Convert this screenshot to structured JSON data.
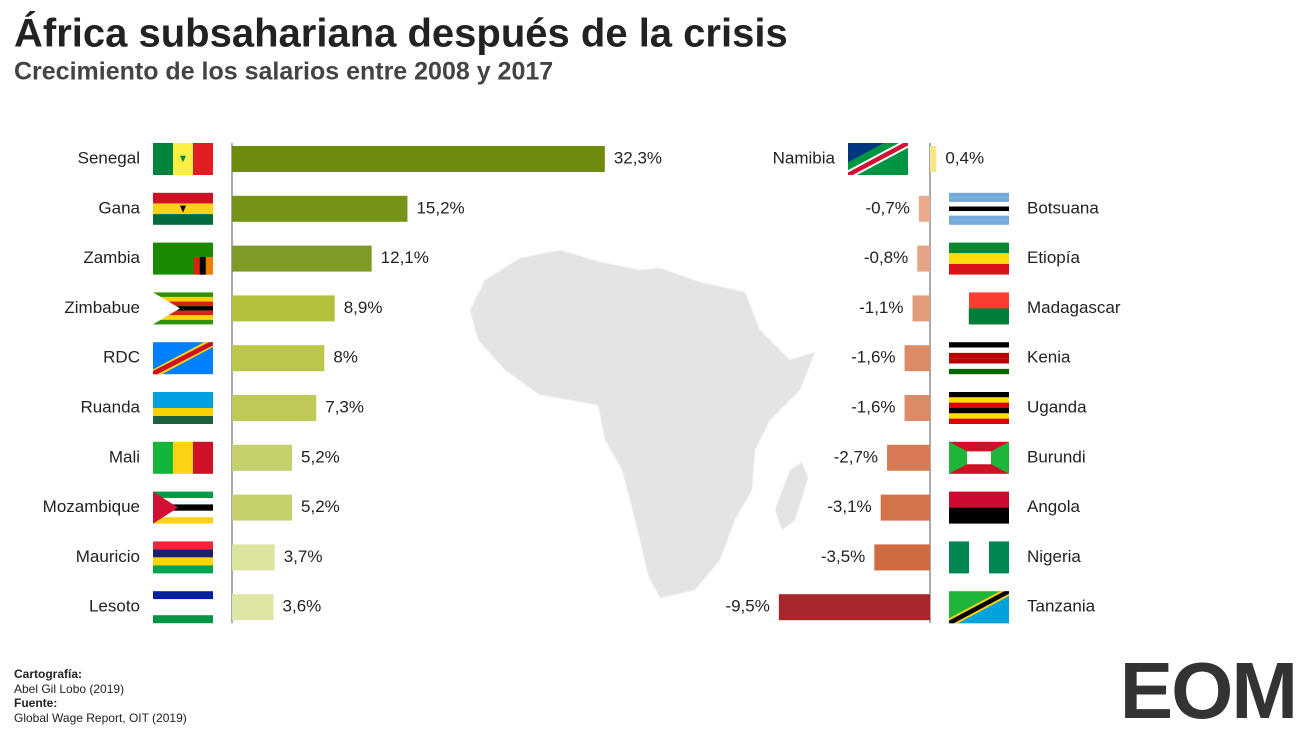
{
  "title": "África subsahariana después de la crisis",
  "subtitle": "Crecimiento de los salarios entre 2008 y 2017",
  "credits": {
    "cartography_label": "Cartografía:",
    "cartography": "Abel Gil Lobo (2019)",
    "source_label": "Fuente:",
    "source": "Global Wage Report, OIT (2019)"
  },
  "logo": "EOM",
  "chart_data": [
    {
      "type": "bar",
      "orientation": "horizontal",
      "categories": [
        "Senegal",
        "Gana",
        "Zambia",
        "Zimbabue",
        "RDC",
        "Ruanda",
        "Mali",
        "Mozambique",
        "Mauricio",
        "Lesoto"
      ],
      "values": [
        32.3,
        15.2,
        12.1,
        8.9,
        8,
        7.3,
        5.2,
        5.2,
        3.7,
        3.6
      ],
      "value_labels": [
        "32,3%",
        "15,2%",
        "12,1%",
        "8,9%",
        "8%",
        "7,3%",
        "5,2%",
        "5,2%",
        "3,7%",
        "3,6%"
      ],
      "colors": [
        "#6e8b0c",
        "#769217",
        "#7e9a27",
        "#b4c13d",
        "#bac74b",
        "#bfca58",
        "#c6d06c",
        "#c6d06c",
        "#dce4a0",
        "#dfe6a4"
      ],
      "xlim": [
        0,
        35
      ]
    },
    {
      "type": "bar",
      "orientation": "horizontal",
      "categories": [
        "Namibia",
        "Botsuana",
        "Etiopía",
        "Madagascar",
        "Kenia",
        "Uganda",
        "Burundi",
        "Angola",
        "Nigeria",
        "Tanzania"
      ],
      "values": [
        0.4,
        -0.7,
        -0.8,
        -1.1,
        -1.6,
        -1.6,
        -2.7,
        -3.1,
        -3.5,
        -9.5
      ],
      "value_labels": [
        "0,4%",
        "-0,7%",
        "-0,8%",
        "-1,1%",
        "-1,6%",
        "-1,6%",
        "-2,7%",
        "-3,1%",
        "-3,5%",
        "-9,5%"
      ],
      "colors": [
        "#f3e887",
        "#e9ab8e",
        "#e6a487",
        "#e39c7b",
        "#dc8b69",
        "#dc8b69",
        "#d77b56",
        "#d4724a",
        "#d06a40",
        "#a8272b"
      ],
      "xlim": [
        -10,
        1
      ]
    }
  ]
}
